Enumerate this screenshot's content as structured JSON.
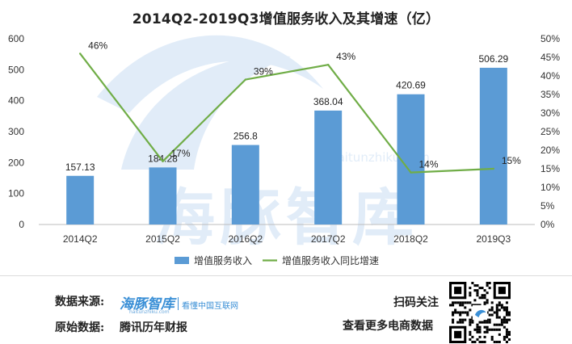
{
  "chart_data": {
    "type": "bar+line",
    "title": "2014Q2-2019Q3增值服务收入及其增速（亿）",
    "categories": [
      "2014Q2",
      "2015Q2",
      "2016Q2",
      "2017Q2",
      "2018Q2",
      "2019Q3"
    ],
    "series": [
      {
        "name": "增值服务收入",
        "type": "bar",
        "axis": "left",
        "values": [
          157.13,
          184.28,
          256.8,
          368.04,
          420.69,
          506.29
        ],
        "labels": [
          "157.13",
          "184.28",
          "256.8",
          "368.04",
          "420.69",
          "506.29"
        ],
        "color": "#5b9bd5"
      },
      {
        "name": "增值服务收入同比增速",
        "type": "line",
        "axis": "right",
        "values": [
          46,
          17,
          39,
          43,
          14,
          15
        ],
        "labels": [
          "46%",
          "17%",
          "39%",
          "43%",
          "14%",
          "15%"
        ],
        "color": "#70ad47"
      }
    ],
    "y_left": {
      "min": 0,
      "max": 600,
      "ticks": [
        "0",
        "100",
        "200",
        "300",
        "400",
        "500",
        "600"
      ]
    },
    "y_right": {
      "min": 0,
      "max": 50,
      "ticks": [
        "0%",
        "5%",
        "10%",
        "15%",
        "20%",
        "25%",
        "30%",
        "35%",
        "40%",
        "45%",
        "50%"
      ]
    },
    "grid": false,
    "legend_position": "bottom"
  },
  "watermark": {
    "brand": "海豚智库",
    "url": "haitunzhiku.com"
  },
  "footer": {
    "source_label": "数据来源:",
    "brand_name": "海豚智库",
    "brand_tagline": "看懂中国互联网",
    "brand_url": "haitunzhiku.com",
    "original_label": "原始数据:",
    "original_source": "腾讯历年财报",
    "scan_label": "扫码关注",
    "more_label": "查看更多电商数据"
  }
}
